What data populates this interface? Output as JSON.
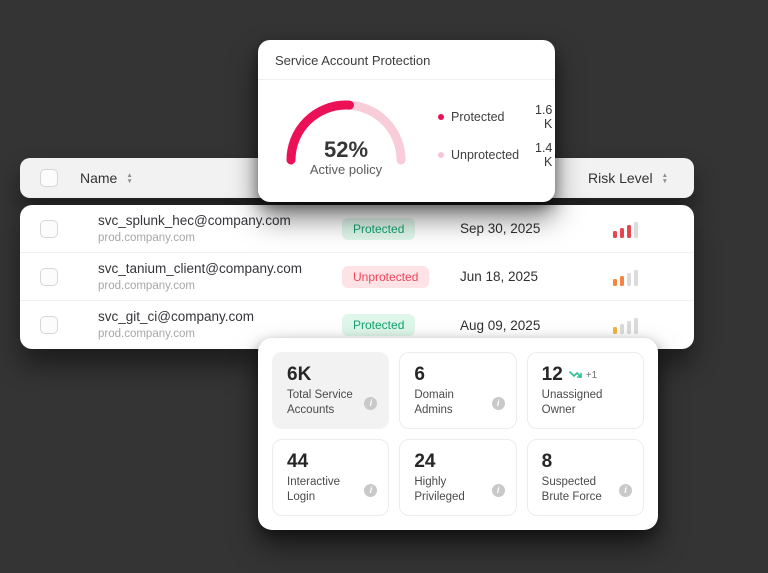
{
  "gauge_card": {
    "title": "Service Account Protection",
    "percent_label": "52%",
    "percent": 52,
    "caption": "Active policy",
    "colors": {
      "fill": "#ec1056",
      "track": "#f8ccd8"
    },
    "legend": [
      {
        "label": "Protected",
        "value": "1.6 K",
        "dot_color": "#ec1056"
      },
      {
        "label": "Unprotected",
        "value": "1.4 K",
        "dot_color": "#f7c6d3"
      }
    ]
  },
  "table": {
    "header": {
      "name_label": "Name",
      "risk_label": "Risk Level"
    },
    "rows": [
      {
        "name": "svc_splunk_hec@company.com",
        "domain": "prod.company.com",
        "status": "Protected",
        "status_type": "protected",
        "date": "Sep 30, 2025",
        "risk": {
          "level": 3,
          "color": "#e8454f"
        }
      },
      {
        "name": "svc_tanium_client@company.com",
        "domain": "prod.company.com",
        "status": "Unprotected",
        "status_type": "unprotected",
        "date": "Jun 18, 2025",
        "risk": {
          "level": 2,
          "color": "#f8823f"
        }
      },
      {
        "name": "svc_git_ci@company.com",
        "domain": "prod.company.com",
        "status": "Protected",
        "status_type": "protected",
        "date": "Aug 09, 2025",
        "risk": {
          "level": 1,
          "color": "#f3b33c"
        }
      }
    ],
    "risk_bar_gray": "#dbdbdb"
  },
  "stats": {
    "tiles": [
      {
        "value": "6K",
        "label": "Total Service Accounts"
      },
      {
        "value": "6",
        "label": "Domain Admins"
      },
      {
        "value": "12",
        "label": "Unassigned Owner",
        "trend": "+1",
        "trend_color": "#2ec08b"
      },
      {
        "value": "44",
        "label": "Interactive Login"
      },
      {
        "value": "24",
        "label": "Highly Privileged"
      },
      {
        "value": "8",
        "label": "Suspected Brute Force"
      }
    ]
  }
}
